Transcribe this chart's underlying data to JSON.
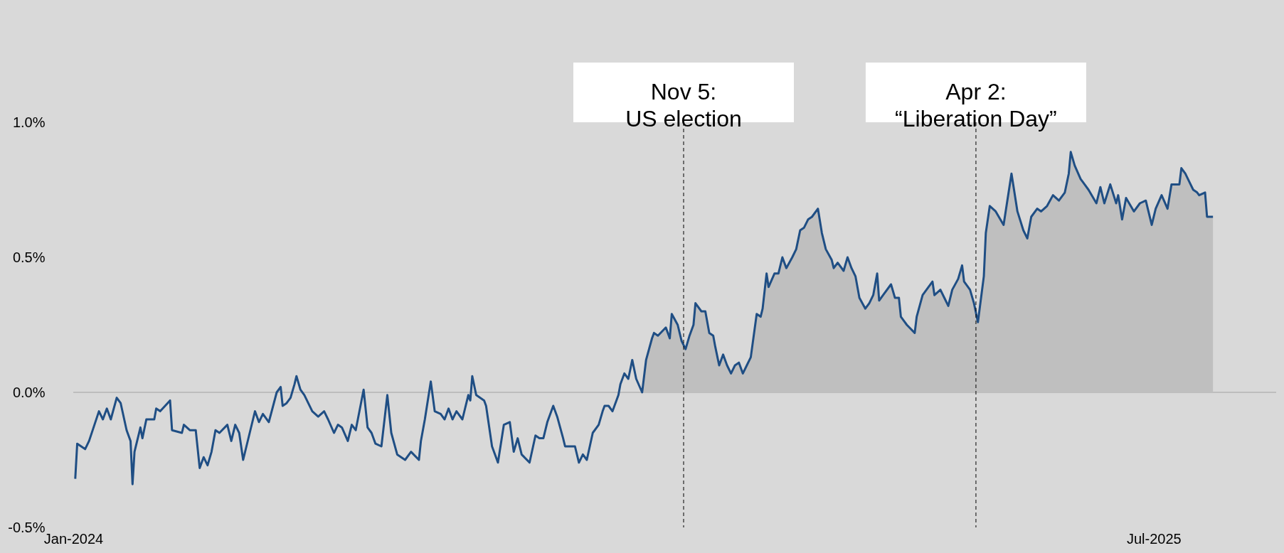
{
  "chart_data": {
    "type": "line",
    "series": [
      {
        "type": "area",
        "color": "#bfbfbf",
        "x": [
          "2024-10-15",
          "2024-10-17",
          "2024-10-20",
          "2024-10-21",
          "2024-10-23",
          "2024-10-27",
          "2024-10-29",
          "2024-10-30",
          "2024-11-02",
          "2024-11-04",
          "2024-11-06",
          "2024-11-08",
          "2024-11-10",
          "2024-11-11",
          "2024-11-14",
          "2024-11-16",
          "2024-11-18",
          "2024-11-20",
          "2024-11-21",
          "2024-11-23",
          "2024-11-25",
          "2024-11-27",
          "2024-11-29",
          "2024-12-01",
          "2024-12-03",
          "2024-12-05",
          "2024-12-07",
          "2024-12-09",
          "2024-12-12",
          "2024-12-14",
          "2024-12-15",
          "2024-12-17",
          "2024-12-18",
          "2024-12-21",
          "2024-12-23",
          "2024-12-25",
          "2024-12-27",
          "2024-12-30",
          "2025-01-01",
          "2025-01-03",
          "2025-01-05",
          "2025-01-07",
          "2025-01-09",
          "2025-01-12",
          "2025-01-14",
          "2025-01-16",
          "2025-01-19",
          "2025-01-20",
          "2025-01-22",
          "2025-01-25",
          "2025-01-27",
          "2025-01-29",
          "2025-01-31",
          "2025-02-02",
          "2025-02-05",
          "2025-02-07",
          "2025-02-09",
          "2025-02-11",
          "2025-02-12",
          "2025-02-14",
          "2025-02-18",
          "2025-02-20",
          "2025-02-22",
          "2025-02-23",
          "2025-02-26",
          "2025-03-02",
          "2025-03-03",
          "2025-03-06",
          "2025-03-11",
          "2025-03-12",
          "2025-03-15",
          "2025-03-17",
          "2025-03-19",
          "2025-03-21",
          "2025-03-24",
          "2025-03-26",
          "2025-03-27",
          "2025-03-30",
          "2025-04-01",
          "2025-04-03",
          "2025-04-06",
          "2025-04-07",
          "2025-04-09",
          "2025-04-12",
          "2025-04-16",
          "2025-04-20",
          "2025-04-23",
          "2025-04-26",
          "2025-04-28",
          "2025-04-30",
          "2025-05-03",
          "2025-05-05",
          "2025-05-08",
          "2025-05-11",
          "2025-05-14",
          "2025-05-17",
          "2025-05-19",
          "2025-05-20",
          "2025-05-22",
          "2025-05-25",
          "2025-05-27",
          "2025-05-29",
          "2025-06-02",
          "2025-06-04",
          "2025-06-06",
          "2025-06-09",
          "2025-06-12",
          "2025-06-13",
          "2025-06-15",
          "2025-06-17",
          "2025-06-21",
          "2025-06-24",
          "2025-06-27",
          "2025-06-30",
          "2025-07-02",
          "2025-07-05",
          "2025-07-08",
          "2025-07-10",
          "2025-07-14",
          "2025-07-15",
          "2025-07-17",
          "2025-07-19",
          "2025-07-21",
          "2025-07-23",
          "2025-07-24",
          "2025-07-27",
          "2025-07-28",
          "2025-07-31"
        ],
        "values": [
          0.0,
          0.12,
          0.2,
          0.22,
          0.21,
          0.24,
          0.2,
          0.29,
          0.25,
          0.19,
          0.16,
          0.21,
          0.25,
          0.33,
          0.3,
          0.3,
          0.22,
          0.21,
          0.17,
          0.1,
          0.14,
          0.1,
          0.07,
          0.1,
          0.11,
          0.07,
          0.1,
          0.13,
          0.29,
          0.28,
          0.31,
          0.44,
          0.39,
          0.44,
          0.44,
          0.5,
          0.46,
          0.5,
          0.53,
          0.6,
          0.61,
          0.64,
          0.65,
          0.68,
          0.59,
          0.53,
          0.49,
          0.46,
          0.48,
          0.45,
          0.5,
          0.46,
          0.43,
          0.35,
          0.31,
          0.33,
          0.36,
          0.44,
          0.34,
          0.36,
          0.4,
          0.35,
          0.35,
          0.28,
          0.25,
          0.22,
          0.28,
          0.36,
          0.41,
          0.36,
          0.38,
          0.35,
          0.32,
          0.38,
          0.42,
          0.47,
          0.41,
          0.38,
          0.33,
          0.26,
          0.43,
          0.59,
          0.69,
          0.67,
          0.62,
          0.81,
          0.67,
          0.6,
          0.57,
          0.65,
          0.68,
          0.67,
          0.69,
          0.73,
          0.71,
          0.74,
          0.81,
          0.89,
          0.84,
          0.79,
          0.77,
          0.75,
          0.7,
          0.76,
          0.7,
          0.77,
          0.7,
          0.73,
          0.64,
          0.72,
          0.67,
          0.7,
          0.71,
          0.62,
          0.68,
          0.73,
          0.68,
          0.77,
          0.77,
          0.83,
          0.81,
          0.78,
          0.75,
          0.74,
          0.73,
          0.74,
          0.65,
          0.65
        ]
      },
      {
        "color": "#1f4e84",
        "x": [
          "2024-01-02",
          "2024-01-03",
          "2024-01-07",
          "2024-01-09",
          "2024-01-14",
          "2024-01-16",
          "2024-01-18",
          "2024-01-20",
          "2024-01-23",
          "2024-01-25",
          "2024-01-28",
          "2024-01-30",
          "2024-01-31",
          "2024-02-01",
          "2024-02-04",
          "2024-02-05",
          "2024-02-07",
          "2024-02-11",
          "2024-02-12",
          "2024-02-14",
          "2024-02-19",
          "2024-02-20",
          "2024-02-25",
          "2024-02-26",
          "2024-02-29",
          "2024-03-03",
          "2024-03-05",
          "2024-03-07",
          "2024-03-09",
          "2024-03-11",
          "2024-03-13",
          "2024-03-15",
          "2024-03-19",
          "2024-03-21",
          "2024-03-23",
          "2024-03-25",
          "2024-03-27",
          "2024-04-01",
          "2024-04-02",
          "2024-04-04",
          "2024-04-06",
          "2024-04-09",
          "2024-04-13",
          "2024-04-15",
          "2024-04-16",
          "2024-04-18",
          "2024-04-20",
          "2024-04-22",
          "2024-04-23",
          "2024-04-25",
          "2024-04-27",
          "2024-05-01",
          "2024-05-04",
          "2024-05-07",
          "2024-05-09",
          "2024-05-12",
          "2024-05-14",
          "2024-05-16",
          "2024-05-19",
          "2024-05-21",
          "2024-05-23",
          "2024-05-27",
          "2024-05-29",
          "2024-05-31",
          "2024-06-02",
          "2024-06-05",
          "2024-06-08",
          "2024-06-10",
          "2024-06-13",
          "2024-06-15",
          "2024-06-17",
          "2024-06-20",
          "2024-06-24",
          "2024-06-25",
          "2024-06-27",
          "2024-06-30",
          "2024-07-02",
          "2024-07-05",
          "2024-07-07",
          "2024-07-09",
          "2024-07-11",
          "2024-07-13",
          "2024-07-16",
          "2024-07-19",
          "2024-07-20",
          "2024-07-21",
          "2024-07-23",
          "2024-07-27",
          "2024-07-28",
          "2024-07-31",
          "2024-08-03",
          "2024-08-06",
          "2024-08-09",
          "2024-08-11",
          "2024-08-13",
          "2024-08-15",
          "2024-08-19",
          "2024-08-22",
          "2024-08-24",
          "2024-08-26",
          "2024-08-28",
          "2024-08-31",
          "2024-09-02",
          "2024-09-05",
          "2024-09-06",
          "2024-09-09",
          "2024-09-11",
          "2024-09-13",
          "2024-09-15",
          "2024-09-17",
          "2024-09-20",
          "2024-09-23",
          "2024-09-25",
          "2024-09-26",
          "2024-09-28",
          "2024-09-30",
          "2024-10-03",
          "2024-10-04",
          "2024-10-06",
          "2024-10-08",
          "2024-10-10",
          "2024-10-12",
          "2024-10-15",
          "2024-10-17",
          "2024-10-20",
          "2024-10-21",
          "2024-10-23",
          "2024-10-27",
          "2024-10-29",
          "2024-10-30",
          "2024-11-02",
          "2024-11-04",
          "2024-11-06",
          "2024-11-08",
          "2024-11-10",
          "2024-11-11",
          "2024-11-14",
          "2024-11-16",
          "2024-11-18",
          "2024-11-20",
          "2024-11-21",
          "2024-11-23",
          "2024-11-25",
          "2024-11-27",
          "2024-11-29",
          "2024-12-01",
          "2024-12-03",
          "2024-12-05",
          "2024-12-07",
          "2024-12-09",
          "2024-12-12",
          "2024-12-14",
          "2024-12-15",
          "2024-12-17",
          "2024-12-18",
          "2024-12-21",
          "2024-12-23",
          "2024-12-25",
          "2024-12-27",
          "2024-12-30",
          "2025-01-01",
          "2025-01-03",
          "2025-01-05",
          "2025-01-07",
          "2025-01-09",
          "2025-01-12",
          "2025-01-14",
          "2025-01-16",
          "2025-01-19",
          "2025-01-20",
          "2025-01-22",
          "2025-01-25",
          "2025-01-27",
          "2025-01-29",
          "2025-01-31",
          "2025-02-02",
          "2025-02-05",
          "2025-02-07",
          "2025-02-09",
          "2025-02-11",
          "2025-02-12",
          "2025-02-14",
          "2025-02-18",
          "2025-02-20",
          "2025-02-22",
          "2025-02-23",
          "2025-02-26",
          "2025-03-02",
          "2025-03-03",
          "2025-03-06",
          "2025-03-11",
          "2025-03-12",
          "2025-03-15",
          "2025-03-17",
          "2025-03-19",
          "2025-03-21",
          "2025-03-24",
          "2025-03-26",
          "2025-03-27",
          "2025-03-30",
          "2025-04-01",
          "2025-04-03",
          "2025-04-06",
          "2025-04-07",
          "2025-04-09",
          "2025-04-12",
          "2025-04-16",
          "2025-04-20",
          "2025-04-23",
          "2025-04-26",
          "2025-04-28",
          "2025-04-30",
          "2025-05-03",
          "2025-05-05",
          "2025-05-08",
          "2025-05-11",
          "2025-05-14",
          "2025-05-17",
          "2025-05-19",
          "2025-05-20",
          "2025-05-22",
          "2025-05-25",
          "2025-05-27",
          "2025-05-29",
          "2025-06-02",
          "2025-06-04",
          "2025-06-06",
          "2025-06-09",
          "2025-06-12",
          "2025-06-13",
          "2025-06-15",
          "2025-06-17",
          "2025-06-21",
          "2025-06-24",
          "2025-06-27",
          "2025-06-30",
          "2025-07-02",
          "2025-07-05",
          "2025-07-08",
          "2025-07-10",
          "2025-07-14",
          "2025-07-15",
          "2025-07-17",
          "2025-07-19",
          "2025-07-21",
          "2025-07-23",
          "2025-07-24",
          "2025-07-27",
          "2025-07-28",
          "2025-07-31"
        ],
        "values": [
          -0.32,
          -0.19,
          -0.21,
          -0.18,
          -0.07,
          -0.1,
          -0.06,
          -0.1,
          -0.02,
          -0.04,
          -0.14,
          -0.18,
          -0.34,
          -0.22,
          -0.13,
          -0.17,
          -0.1,
          -0.1,
          -0.06,
          -0.07,
          -0.03,
          -0.14,
          -0.15,
          -0.12,
          -0.14,
          -0.14,
          -0.28,
          -0.24,
          -0.27,
          -0.22,
          -0.14,
          -0.15,
          -0.12,
          -0.18,
          -0.12,
          -0.15,
          -0.25,
          -0.1,
          -0.07,
          -0.11,
          -0.08,
          -0.11,
          0.0,
          0.02,
          -0.05,
          -0.04,
          -0.02,
          0.03,
          0.06,
          0.01,
          -0.01,
          -0.07,
          -0.09,
          -0.07,
          -0.1,
          -0.15,
          -0.12,
          -0.13,
          -0.18,
          -0.12,
          -0.14,
          0.01,
          -0.13,
          -0.15,
          -0.19,
          -0.2,
          -0.01,
          -0.15,
          -0.23,
          -0.24,
          -0.25,
          -0.22,
          -0.25,
          -0.18,
          -0.1,
          0.04,
          -0.07,
          -0.08,
          -0.1,
          -0.06,
          -0.1,
          -0.07,
          -0.1,
          -0.01,
          -0.03,
          0.06,
          -0.01,
          -0.03,
          -0.05,
          -0.2,
          -0.26,
          -0.12,
          -0.11,
          -0.22,
          -0.17,
          -0.23,
          -0.26,
          -0.16,
          -0.17,
          -0.17,
          -0.11,
          -0.05,
          -0.09,
          -0.17,
          -0.2,
          -0.2,
          -0.2,
          -0.26,
          -0.23,
          -0.25,
          -0.15,
          -0.12,
          -0.07,
          -0.05,
          -0.05,
          -0.07,
          -0.01,
          0.03,
          0.07,
          0.05,
          0.12,
          0.05,
          0.0,
          0.12,
          0.2,
          0.22,
          0.21,
          0.24,
          0.2,
          0.29,
          0.25,
          0.19,
          0.16,
          0.21,
          0.25,
          0.33,
          0.3,
          0.3,
          0.22,
          0.21,
          0.17,
          0.1,
          0.14,
          0.1,
          0.07,
          0.1,
          0.11,
          0.07,
          0.1,
          0.13,
          0.29,
          0.28,
          0.31,
          0.44,
          0.39,
          0.44,
          0.44,
          0.5,
          0.46,
          0.5,
          0.53,
          0.6,
          0.61,
          0.64,
          0.65,
          0.68,
          0.59,
          0.53,
          0.49,
          0.46,
          0.48,
          0.45,
          0.5,
          0.46,
          0.43,
          0.35,
          0.31,
          0.33,
          0.36,
          0.44,
          0.34,
          0.36,
          0.4,
          0.35,
          0.35,
          0.28,
          0.25,
          0.22,
          0.28,
          0.36,
          0.41,
          0.36,
          0.38,
          0.35,
          0.32,
          0.38,
          0.42,
          0.47,
          0.41,
          0.38,
          0.33,
          0.26,
          0.43,
          0.59,
          0.69,
          0.67,
          0.62,
          0.81,
          0.67,
          0.6,
          0.57,
          0.65,
          0.68,
          0.67,
          0.69,
          0.73,
          0.71,
          0.74,
          0.81,
          0.89,
          0.84,
          0.79,
          0.77,
          0.75,
          0.7,
          0.76,
          0.7,
          0.77,
          0.7,
          0.73,
          0.64,
          0.72,
          0.67,
          0.7,
          0.71,
          0.62,
          0.68,
          0.73,
          0.68,
          0.77,
          0.77,
          0.83,
          0.81,
          0.78,
          0.75,
          0.74,
          0.73,
          0.74,
          0.65,
          0.65
        ]
      }
    ],
    "xlim": [
      "2024-01-01",
      "2025-09-01"
    ],
    "xticks": [
      {
        "value": "2024-01-01",
        "label": "Jan-2024"
      },
      {
        "value": "2025-07-01",
        "label": "Jul-2025"
      }
    ],
    "ylim": [
      -0.5,
      1.0
    ],
    "yticks": [
      {
        "value": -0.5,
        "label": "-0.5%"
      },
      {
        "value": 0.0,
        "label": "0.0%"
      },
      {
        "value": 0.5,
        "label": "0.5%"
      },
      {
        "value": 1.0,
        "label": "1.0%"
      }
    ],
    "ref_lines": [
      {
        "axis": "y",
        "value": 0,
        "color": "#b3b3b3"
      },
      {
        "axis": "x",
        "value": "2024-11-05",
        "label": "Nov 5:\nUS election",
        "color": "#000000",
        "line_style": "dashed"
      },
      {
        "axis": "x",
        "value": "2025-04-02",
        "label": "Apr 2:\n“Liberation Day”",
        "color": "#000000",
        "line_style": "dashed"
      }
    ],
    "grid": false,
    "line_style": "solid",
    "marker": "none"
  }
}
